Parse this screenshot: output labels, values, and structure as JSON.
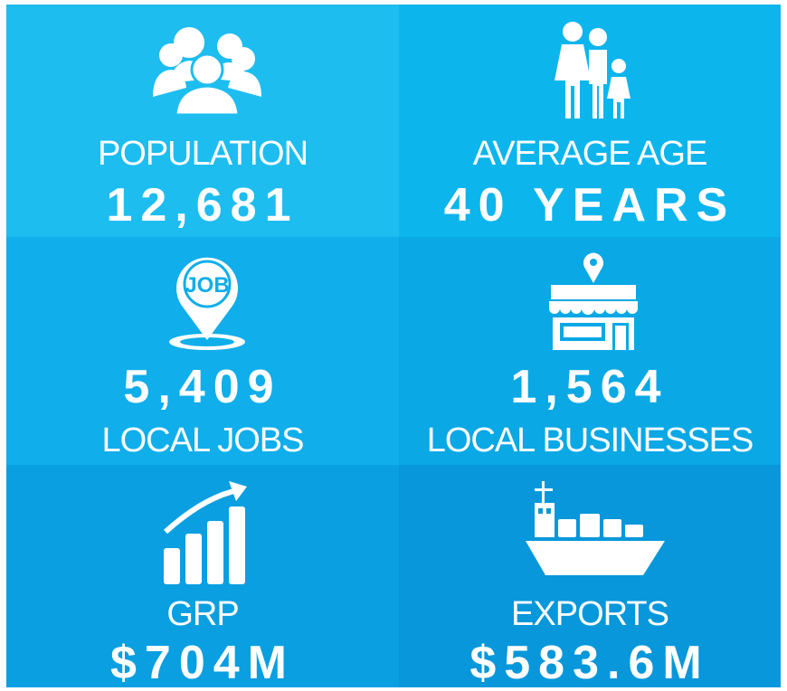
{
  "tiles": [
    {
      "label": "POPULATION",
      "value": "12,681"
    },
    {
      "label": "AVERAGE AGE",
      "value": "40 YEARS"
    },
    {
      "label": "LOCAL JOBS",
      "value": "5,409",
      "icon_text": "JOB"
    },
    {
      "label": "LOCAL BUSINESSES",
      "value": "1,564"
    },
    {
      "label": "GRP",
      "value": "$704M"
    },
    {
      "label": "EXPORTS",
      "value": "$583.6M"
    }
  ]
}
